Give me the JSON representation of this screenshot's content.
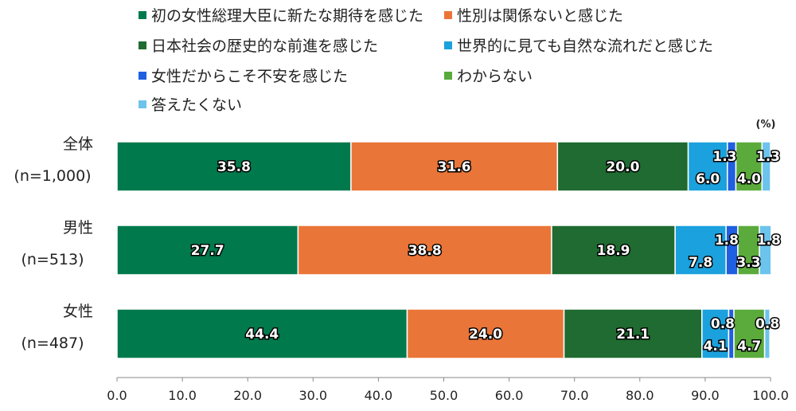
{
  "chart_data": {
    "type": "bar",
    "orientation": "horizontal",
    "stacked": true,
    "unit_label": "(%)",
    "legend_placement": "top",
    "xlim": [
      0,
      100
    ],
    "x_ticks": [
      "0.0",
      "10.0",
      "20.0",
      "30.0",
      "40.0",
      "50.0",
      "60.0",
      "70.0",
      "80.0",
      "90.0",
      "100.0"
    ],
    "categories": [
      {
        "name": "全体",
        "n": "(n=1,000)"
      },
      {
        "name": "男性",
        "n": "(n=513)"
      },
      {
        "name": "女性",
        "n": "(n=487)"
      }
    ],
    "series": [
      {
        "name": "初の女性総理大臣に新たな期待を感じた",
        "color": "#007a4d",
        "values": [
          35.8,
          27.7,
          44.4
        ],
        "labels": [
          "35.8",
          "27.7",
          "44.4"
        ]
      },
      {
        "name": "性別は関係ないと感じた",
        "color": "#ea7538",
        "values": [
          31.6,
          38.8,
          24.0
        ],
        "labels": [
          "31.6",
          "38.8",
          "24.0"
        ]
      },
      {
        "name": "日本社会の歴史的な前進を感じた",
        "color": "#1f6b31",
        "values": [
          20.0,
          18.9,
          21.1
        ],
        "labels": [
          "20.0",
          "18.9",
          "21.1"
        ]
      },
      {
        "name": "世界的に見ても自然な流れだと感じた",
        "color": "#1ba1dd",
        "values": [
          6.0,
          7.8,
          4.1
        ],
        "labels": [
          "6.0",
          "7.8",
          "4.1"
        ]
      },
      {
        "name": "女性だからこそ不安を感じた",
        "color": "#1f5fe0",
        "values": [
          1.3,
          1.8,
          0.8
        ],
        "labels": [
          "1.3",
          "1.8",
          "0.8"
        ]
      },
      {
        "name": "わからない",
        "color": "#5aab3b",
        "values": [
          4.0,
          3.3,
          4.7
        ],
        "labels": [
          "4.0",
          "3.3",
          "4.7"
        ]
      },
      {
        "name": "答えたくない",
        "color": "#6cc3ec",
        "values": [
          1.3,
          1.8,
          0.8
        ],
        "labels": [
          "1.3",
          "1.8",
          "0.8"
        ]
      }
    ]
  }
}
